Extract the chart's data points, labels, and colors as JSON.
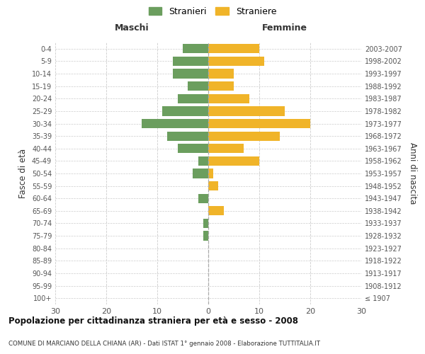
{
  "age_groups": [
    "100+",
    "95-99",
    "90-94",
    "85-89",
    "80-84",
    "75-79",
    "70-74",
    "65-69",
    "60-64",
    "55-59",
    "50-54",
    "45-49",
    "40-44",
    "35-39",
    "30-34",
    "25-29",
    "20-24",
    "15-19",
    "10-14",
    "5-9",
    "0-4"
  ],
  "birth_years": [
    "≤ 1907",
    "1908-1912",
    "1913-1917",
    "1918-1922",
    "1923-1927",
    "1928-1932",
    "1933-1937",
    "1938-1942",
    "1943-1947",
    "1948-1952",
    "1953-1957",
    "1958-1962",
    "1963-1967",
    "1968-1972",
    "1973-1977",
    "1978-1982",
    "1983-1987",
    "1988-1992",
    "1993-1997",
    "1998-2002",
    "2003-2007"
  ],
  "males": [
    0,
    0,
    0,
    0,
    0,
    1,
    1,
    0,
    2,
    0,
    3,
    2,
    6,
    8,
    13,
    9,
    6,
    4,
    7,
    7,
    5
  ],
  "females": [
    0,
    0,
    0,
    0,
    0,
    0,
    0,
    3,
    0,
    2,
    1,
    10,
    7,
    14,
    20,
    15,
    8,
    5,
    5,
    11,
    10
  ],
  "male_color": "#6b9e5e",
  "female_color": "#f0b429",
  "background_color": "#ffffff",
  "grid_color": "#cccccc",
  "title": "Popolazione per cittadinanza straniera per età e sesso - 2008",
  "subtitle": "COMUNE DI MARCIANO DELLA CHIANA (AR) - Dati ISTAT 1° gennaio 2008 - Elaborazione TUTTITALIA.IT",
  "left_label": "Maschi",
  "right_label": "Femmine",
  "y_left_label": "Fasce di età",
  "y_right_label": "Anni di nascita",
  "legend_male": "Stranieri",
  "legend_female": "Straniere",
  "xlim": 30,
  "bar_height": 0.75
}
